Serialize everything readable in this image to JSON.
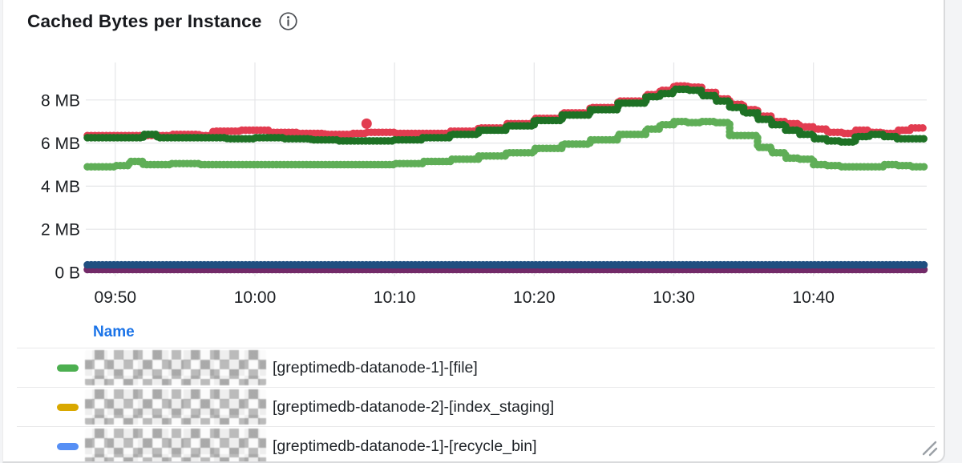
{
  "card": {
    "title": "Cached Bytes per Instance",
    "info_icon": "info-icon"
  },
  "chart_data": {
    "type": "line",
    "title": "Cached Bytes per Instance",
    "style": "stepped dotted time series",
    "xlabel": "",
    "ylabel": "",
    "y_unit": "bytes",
    "grid": true,
    "legend_position": "bottom-table",
    "x_ticks": [
      {
        "t": 2,
        "label": "09:50"
      },
      {
        "t": 12,
        "label": "10:00"
      },
      {
        "t": 22,
        "label": "10:10"
      },
      {
        "t": 32,
        "label": "10:20"
      },
      {
        "t": 42,
        "label": "10:30"
      },
      {
        "t": 52,
        "label": "10:40"
      }
    ],
    "x_range_minutes": [
      0,
      60
    ],
    "y_ticks": [
      {
        "v": 0,
        "label": "0 B"
      },
      {
        "v": 2,
        "label": "2 MB"
      },
      {
        "v": 4,
        "label": "4 MB"
      },
      {
        "v": 6,
        "label": "6 MB"
      },
      {
        "v": 8,
        "label": "8 MB"
      }
    ],
    "ylim_mb": [
      0,
      9.9
    ],
    "series": [
      {
        "name": "purple-flat",
        "color": "#722a68",
        "unit": "MB",
        "points": [
          [
            0,
            0.13
          ],
          [
            60,
            0.13
          ]
        ]
      },
      {
        "name": "navy-flat",
        "color": "#204f80",
        "unit": "MB",
        "points": [
          [
            0,
            0.35
          ],
          [
            60,
            0.35
          ]
        ]
      },
      {
        "name": "light-green",
        "color": "#5fae57",
        "unit": "MB",
        "points": [
          [
            0,
            4.9
          ],
          [
            2,
            4.95
          ],
          [
            3,
            5.15
          ],
          [
            4,
            5.0
          ],
          [
            6,
            5.05
          ],
          [
            8,
            5.0
          ],
          [
            12,
            5.0
          ],
          [
            16,
            5.0
          ],
          [
            20,
            5.0
          ],
          [
            22,
            5.05
          ],
          [
            24,
            5.15
          ],
          [
            26,
            5.25
          ],
          [
            28,
            5.4
          ],
          [
            30,
            5.55
          ],
          [
            32,
            5.75
          ],
          [
            34,
            5.95
          ],
          [
            36,
            6.15
          ],
          [
            38,
            6.4
          ],
          [
            40,
            6.65
          ],
          [
            41,
            6.85
          ],
          [
            42,
            7.0
          ],
          [
            43,
            6.95
          ],
          [
            44,
            7.0
          ],
          [
            45,
            6.95
          ],
          [
            46,
            6.35
          ],
          [
            48,
            5.8
          ],
          [
            49,
            5.55
          ],
          [
            50,
            5.3
          ],
          [
            51,
            5.25
          ],
          [
            52,
            5.0
          ],
          [
            53,
            4.95
          ],
          [
            54,
            4.9
          ],
          [
            56,
            4.9
          ],
          [
            57,
            5.0
          ],
          [
            58,
            4.95
          ],
          [
            59,
            4.9
          ],
          [
            60,
            4.85
          ]
        ]
      },
      {
        "name": "red",
        "color": "#e23c50",
        "unit": "MB",
        "points": [
          [
            0,
            6.35
          ],
          [
            4,
            6.35
          ],
          [
            6,
            6.4
          ],
          [
            8,
            6.35
          ],
          [
            9,
            6.55
          ],
          [
            11,
            6.6
          ],
          [
            13,
            6.5
          ],
          [
            15,
            6.45
          ],
          [
            17,
            6.4
          ],
          [
            19,
            6.45
          ],
          [
            20,
            6.5
          ],
          [
            22,
            6.45
          ],
          [
            24,
            6.45
          ],
          [
            26,
            6.55
          ],
          [
            28,
            6.7
          ],
          [
            30,
            6.9
          ],
          [
            32,
            7.15
          ],
          [
            34,
            7.4
          ],
          [
            36,
            7.65
          ],
          [
            38,
            7.95
          ],
          [
            40,
            8.25
          ],
          [
            41,
            8.45
          ],
          [
            42,
            8.65
          ],
          [
            43,
            8.6
          ],
          [
            44,
            8.35
          ],
          [
            45,
            8.05
          ],
          [
            46,
            7.8
          ],
          [
            47,
            7.55
          ],
          [
            48,
            7.25
          ],
          [
            49,
            7.0
          ],
          [
            50,
            6.9
          ],
          [
            51,
            6.75
          ],
          [
            52,
            6.65
          ],
          [
            53,
            6.5
          ],
          [
            54,
            6.45
          ],
          [
            55,
            6.6
          ],
          [
            56,
            6.5
          ],
          [
            57,
            6.45
          ],
          [
            58,
            6.6
          ],
          [
            59,
            6.7
          ],
          [
            60,
            6.7
          ]
        ]
      },
      {
        "name": "dark-green",
        "color": "#1e7125",
        "unit": "MB",
        "points": [
          [
            0,
            6.25
          ],
          [
            3,
            6.25
          ],
          [
            4,
            6.4
          ],
          [
            5,
            6.25
          ],
          [
            8,
            6.25
          ],
          [
            10,
            6.2
          ],
          [
            12,
            6.25
          ],
          [
            14,
            6.2
          ],
          [
            16,
            6.15
          ],
          [
            18,
            6.1
          ],
          [
            20,
            6.1
          ],
          [
            22,
            6.15
          ],
          [
            24,
            6.25
          ],
          [
            26,
            6.4
          ],
          [
            28,
            6.6
          ],
          [
            30,
            6.8
          ],
          [
            32,
            7.05
          ],
          [
            34,
            7.3
          ],
          [
            36,
            7.55
          ],
          [
            38,
            7.85
          ],
          [
            40,
            8.15
          ],
          [
            41,
            8.3
          ],
          [
            42,
            8.5
          ],
          [
            43,
            8.45
          ],
          [
            44,
            8.2
          ],
          [
            45,
            7.95
          ],
          [
            46,
            7.65
          ],
          [
            47,
            7.4
          ],
          [
            48,
            7.1
          ],
          [
            49,
            6.85
          ],
          [
            50,
            6.6
          ],
          [
            51,
            6.4
          ],
          [
            52,
            6.2
          ],
          [
            53,
            6.1
          ],
          [
            54,
            6.05
          ],
          [
            55,
            6.3
          ],
          [
            56,
            6.4
          ],
          [
            57,
            6.3
          ],
          [
            58,
            6.2
          ],
          [
            60,
            6.2
          ]
        ]
      }
    ],
    "outliers": [
      {
        "series": "red",
        "t": 20,
        "v": 6.9,
        "color": "#e23c50"
      }
    ]
  },
  "legend": {
    "header": "Name",
    "rows": [
      {
        "marker_color": "#4caf50",
        "redacted_prefix": true,
        "label": "[greptimedb-datanode-1]-[file]"
      },
      {
        "marker_color": "#d9a800",
        "redacted_prefix": true,
        "label": "[greptimedb-datanode-2]-[index_staging]"
      },
      {
        "marker_color": "#568ff5",
        "redacted_prefix": true,
        "label": "[greptimedb-datanode-1]-[recycle_bin]"
      }
    ]
  },
  "colors": {
    "grid": "#e5e6e8",
    "tick_text": "#1b1e22",
    "name_header": "#1a73e8",
    "separator": "#e8e9ea",
    "card_border": "#d9dadc",
    "page_background": "#f3f4f6"
  }
}
